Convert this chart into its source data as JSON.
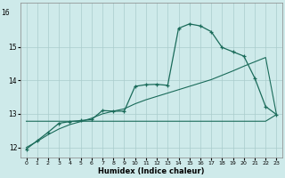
{
  "xlabel": "Humidex (Indice chaleur)",
  "background_color": "#ceeaea",
  "grid_color": "#aacccc",
  "line_color": "#1a6b5a",
  "x_values": [
    0,
    1,
    2,
    3,
    4,
    5,
    6,
    7,
    8,
    9,
    10,
    11,
    12,
    13,
    14,
    15,
    16,
    17,
    18,
    19,
    20,
    21,
    22,
    23
  ],
  "series1": [
    11.95,
    12.2,
    12.45,
    12.72,
    12.77,
    12.8,
    12.83,
    13.1,
    13.08,
    13.08,
    13.82,
    13.87,
    13.88,
    13.85,
    15.55,
    15.68,
    15.62,
    15.45,
    14.98,
    14.85,
    14.72,
    14.07,
    13.22,
    12.98
  ],
  "series2_linear": [
    12.0,
    12.18,
    12.38,
    12.55,
    12.68,
    12.77,
    12.87,
    13.0,
    13.08,
    13.15,
    13.3,
    13.42,
    13.52,
    13.62,
    13.72,
    13.82,
    13.92,
    14.02,
    14.15,
    14.28,
    14.42,
    14.55,
    14.68,
    12.98
  ],
  "series3": [
    12.78,
    12.78,
    12.78,
    12.78,
    12.78,
    12.78,
    12.78,
    12.78,
    12.78,
    12.78,
    12.78,
    12.78,
    12.78,
    12.78,
    12.78,
    12.78,
    12.78,
    12.78,
    12.78,
    12.78,
    12.78,
    12.78,
    12.78,
    12.98
  ],
  "ylim": [
    11.7,
    16.3
  ],
  "yticks": [
    12,
    13,
    14,
    15
  ],
  "xticks": [
    0,
    1,
    2,
    3,
    4,
    5,
    6,
    7,
    8,
    9,
    10,
    11,
    12,
    13,
    14,
    15,
    16,
    17,
    18,
    19,
    20,
    21,
    22,
    23
  ]
}
